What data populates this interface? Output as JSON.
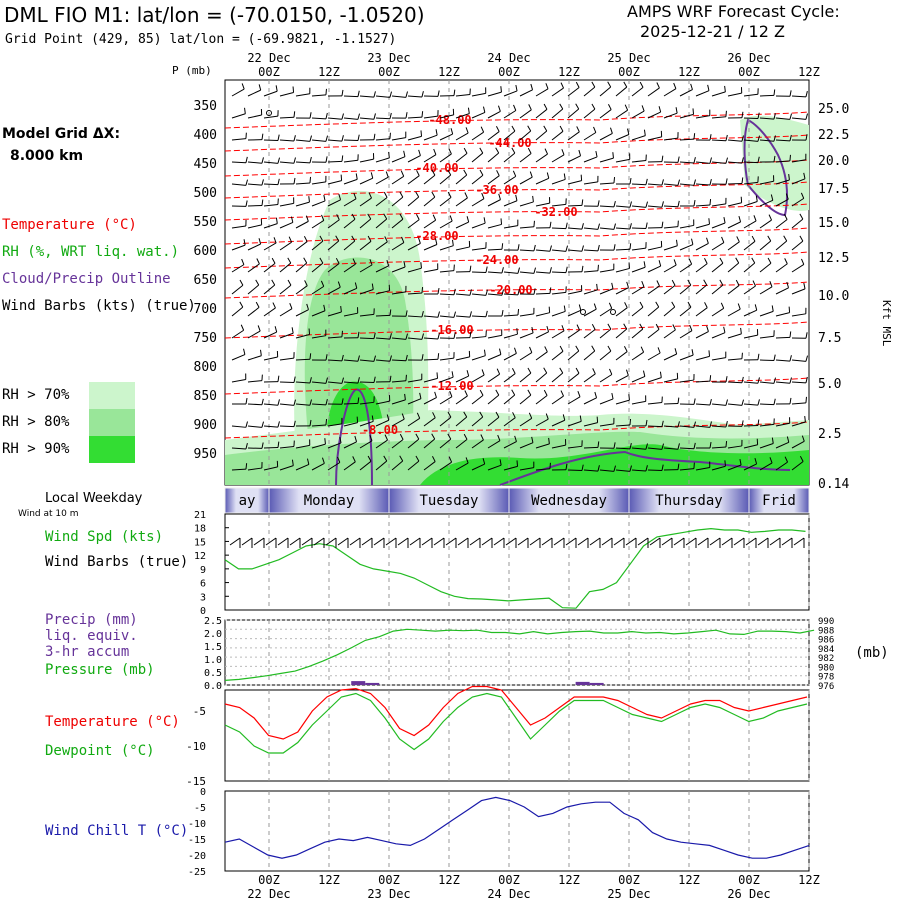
{
  "header": {
    "title": "DML FIO M1:  lat/lon = (-70.0150, -1.0520)",
    "subtitle": "Grid Point (429, 85) lat/lon = (-69.9821, -1.1527)",
    "cycle_label": "AMPS WRF Forecast Cycle:",
    "cycle_value": "2025-12-21 / 12  Z"
  },
  "left_legend": {
    "model_grid": "Model Grid ΔX:",
    "model_grid_value": "8.000 km",
    "temperature": "Temperature (°C)",
    "rh": "RH (%, WRT liq. wat.)",
    "cloud": "Cloud/Precip Outline",
    "wind_barbs": "Wind Barbs (kts) (true)",
    "rh70": "RH > 70%",
    "rh80": "RH > 80%",
    "rh90": "RH > 90%",
    "p_unit": "P (mb)",
    "kft_label": "Kft MSL",
    "local_weekday": "Local Weekday",
    "wind_at_10m": "Wind at 10 m",
    "wind_spd": "Wind Spd (kts)",
    "wind_barbs2": "Wind Barbs (true)",
    "precip1": "Precip (mm)",
    "precip2": "liq. equiv.",
    "precip3": "3-hr accum",
    "pressure": "Pressure (mb)",
    "pressure_unit": "(mb)",
    "temp2": "Temperature (°C)",
    "dewpoint": "Dewpoint (°C)",
    "windchill": "Wind Chill T (°C)"
  },
  "colors": {
    "temperature": "#ff0000",
    "rh": "#22bb22",
    "cloud": "#663399",
    "pressure": "#22bb22",
    "dewpoint": "#22bb22",
    "windchill": "#1a1aaa",
    "rh70": "#ccf5cc",
    "rh80": "#99e699",
    "rh90": "#33dd33"
  },
  "chart_data": [
    {
      "type": "line",
      "name": "vertical cross-section",
      "x_top_labels": [
        {
          "time": "00Z",
          "date": "22 Dec"
        },
        {
          "time": "12Z",
          "date": ""
        },
        {
          "time": "00Z",
          "date": "23 Dec"
        },
        {
          "time": "12Z",
          "date": ""
        },
        {
          "time": "00Z",
          "date": "24 Dec"
        },
        {
          "time": "12Z",
          "date": ""
        },
        {
          "time": "00Z",
          "date": "25 Dec"
        },
        {
          "time": "12Z",
          "date": ""
        },
        {
          "time": "00Z",
          "date": "26 Dec"
        },
        {
          "time": "12Z",
          "date": ""
        }
      ],
      "pressure_ticks": [
        350,
        400,
        450,
        500,
        550,
        600,
        650,
        700,
        750,
        800,
        850,
        900,
        950
      ],
      "height_ticks_kft": [
        "25.0",
        "22.5",
        "20.0",
        "17.5",
        "15.0",
        "12.5",
        "10.0",
        "7.5",
        "5.0",
        "2.5",
        "0.14"
      ],
      "temperature_contour_labels": [
        "-48.00",
        "-44.00",
        "-40.00",
        "-36.00",
        "-32.00",
        "-28.00",
        "-24.00",
        "-20.00",
        "-16.00",
        "-12.00",
        "-8.00"
      ]
    },
    {
      "type": "line",
      "name": "wind speed",
      "ylim": [
        0,
        21
      ],
      "yticks": [
        0,
        3,
        6,
        9,
        12,
        15,
        18,
        21
      ],
      "x_hours": [
        0,
        3,
        6,
        9,
        12,
        15,
        18,
        21,
        24,
        27,
        30,
        33,
        36,
        39,
        42,
        45,
        48,
        51,
        54,
        57,
        60,
        63,
        66,
        69,
        72,
        75,
        78,
        81,
        84,
        87,
        90,
        93,
        96,
        99,
        102,
        105,
        108,
        111,
        114,
        117,
        120,
        123,
        126,
        129
      ],
      "series": [
        {
          "values": [
            11,
            9,
            9,
            10,
            11,
            12.5,
            14,
            14.5,
            14,
            12,
            10,
            9,
            8.5,
            8,
            7,
            5.5,
            4,
            3,
            2.5,
            2.4,
            2.2,
            2,
            2.2,
            2.4,
            2.6,
            0.5,
            0.4,
            4,
            4.5,
            6,
            10,
            14,
            16,
            16.5,
            17,
            17.5,
            17.8,
            17.5,
            17.5,
            17,
            17.2,
            17.5,
            17.5,
            17.2
          ]
        }
      ]
    },
    {
      "type": "line",
      "name": "precip and pressure",
      "precip_ylim": [
        0,
        2.5
      ],
      "precip_ticks": [
        "0.0",
        "0.5",
        "1.0",
        "1.5",
        "2.0",
        "2.5"
      ],
      "pressure_ticks": [
        "976",
        "978",
        "980",
        "982",
        "984",
        "986",
        "988",
        "990"
      ],
      "series": [
        {
          "values": [
            977,
            977.2,
            977.6,
            978.0,
            978.5,
            979.0,
            980.0,
            981.2,
            982.5,
            984.0,
            985.6,
            986.4,
            987.6,
            988.0,
            987.8,
            987.6,
            987.8,
            987.7,
            987.8,
            987.3,
            987.3,
            987.0,
            987.5,
            987.0,
            987.3,
            987.5,
            987.6,
            987.2,
            987.2,
            987.5,
            987.2,
            987.3,
            987.0,
            987.2,
            987.5,
            987.8,
            987.0,
            986.9,
            987.6,
            987.6,
            987.5,
            987.2,
            987.8
          ]
        },
        {
          "values": [
            0,
            0,
            0,
            0,
            0,
            0,
            0,
            0,
            0,
            0.15,
            0.08,
            0,
            0,
            0,
            0,
            0,
            0,
            0,
            0,
            0,
            0,
            0,
            0,
            0,
            0,
            0.12,
            0.08,
            0,
            0,
            0,
            0,
            0,
            0,
            0,
            0,
            0,
            0,
            0,
            0,
            0,
            0,
            0,
            0
          ]
        }
      ]
    },
    {
      "type": "line",
      "name": "temperature and dewpoint",
      "ylim": [
        -15,
        -2
      ],
      "yticks": [
        -15,
        -10,
        -5
      ],
      "series": [
        {
          "values": [
            -4,
            -4.5,
            -6,
            -8.5,
            -9,
            -8,
            -5,
            -3,
            -2,
            -1.8,
            -2.5,
            -4.5,
            -7.5,
            -8.5,
            -7,
            -4.5,
            -2.5,
            -1.5,
            -1.5,
            -2,
            -4.5,
            -7,
            -6,
            -4.5,
            -3,
            -3,
            -3,
            -3.5,
            -4.5,
            -5.5,
            -6,
            -5,
            -4,
            -3.5,
            -3.5,
            -4.5,
            -5,
            -4.5,
            -4,
            -3.5,
            -3
          ]
        },
        {
          "values": [
            -7,
            -8,
            -10,
            -11,
            -11,
            -9.5,
            -7,
            -5,
            -3,
            -2.5,
            -3.5,
            -6,
            -9,
            -10.5,
            -9,
            -6.5,
            -4.5,
            -3,
            -2.5,
            -3,
            -6,
            -9,
            -7,
            -5,
            -3.5,
            -3.5,
            -3.5,
            -4.5,
            -5.5,
            -6,
            -6.5,
            -5.5,
            -4.5,
            -4,
            -4.5,
            -5.5,
            -6.5,
            -6,
            -5,
            -4.5,
            -4
          ]
        }
      ]
    },
    {
      "type": "line",
      "name": "wind chill",
      "ylim": [
        -25,
        0
      ],
      "yticks": [
        -25,
        -20,
        -15,
        -10,
        -5,
        0
      ],
      "series": [
        {
          "values": [
            -16,
            -15,
            -17.5,
            -20,
            -21,
            -20,
            -18,
            -16,
            -15,
            -15.5,
            -14.5,
            -15.5,
            -16.5,
            -17,
            -15,
            -12,
            -9,
            -6,
            -3,
            -2,
            -3,
            -5,
            -8,
            -7,
            -5,
            -4,
            -3.5,
            -3.5,
            -7,
            -9,
            -13,
            -15,
            -16,
            -16.5,
            -17,
            -18.5,
            -20,
            -21,
            -21,
            -20,
            -18.5,
            -17
          ]
        }
      ]
    }
  ],
  "weekday_bar": [
    "ay",
    "Monday",
    "Tuesday",
    "Wednesday",
    "Thursday",
    "Frid"
  ],
  "bottom_axis": [
    {
      "time": "00Z",
      "date": "22 Dec"
    },
    {
      "time": "12Z",
      "date": ""
    },
    {
      "time": "00Z",
      "date": "23 Dec"
    },
    {
      "time": "12Z",
      "date": ""
    },
    {
      "time": "00Z",
      "date": "24 Dec"
    },
    {
      "time": "12Z",
      "date": ""
    },
    {
      "time": "00Z",
      "date": "25 Dec"
    },
    {
      "time": "12Z",
      "date": ""
    },
    {
      "time": "00Z",
      "date": "26 Dec"
    },
    {
      "time": "12Z",
      "date": ""
    }
  ]
}
